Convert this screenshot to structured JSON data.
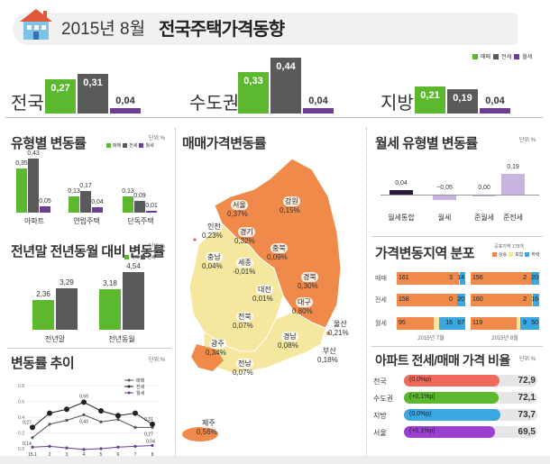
{
  "header": {
    "date": "2015년 8월",
    "title": "전국주택가격동향"
  },
  "legend3": [
    "매매",
    "전세",
    "월세"
  ],
  "top_groups": [
    {
      "label": "전국",
      "values": [
        0.27,
        0.31,
        0.04
      ],
      "texts": [
        "0,27",
        "0,31",
        "0,04"
      ]
    },
    {
      "label": "수도권",
      "values": [
        0.33,
        0.44,
        0.04
      ],
      "texts": [
        "0,33",
        "0,44",
        "0,04"
      ]
    },
    {
      "label": "지방",
      "values": [
        0.21,
        0.19,
        0.04
      ],
      "texts": [
        "0,21",
        "0,19",
        "0,04"
      ]
    }
  ],
  "type_change": {
    "title": "유형별 변동률",
    "unit": "단위:%",
    "groups": [
      {
        "label": "아파트",
        "values": [
          0.35,
          0.43,
          0.05
        ],
        "texts": [
          "0,35",
          "0,43",
          "0,05"
        ]
      },
      {
        "label": "연립주택",
        "values": [
          0.13,
          0.17,
          0.04
        ],
        "texts": [
          "0,13",
          "0,17",
          "0,04"
        ]
      },
      {
        "label": "단독주택",
        "values": [
          0.13,
          0.09,
          0.01
        ],
        "texts": [
          "0,13",
          "0,09",
          "0,01"
        ]
      }
    ]
  },
  "yoy": {
    "title": "전년말 전년동월 대비 변동률",
    "unit": "단위:%",
    "groups": [
      {
        "label": "전년말",
        "values": [
          2.36,
          3.29
        ],
        "texts": [
          "2,36",
          "3,29"
        ]
      },
      {
        "label": "전년동월",
        "values": [
          3.18,
          4.54
        ],
        "texts": [
          "3,18",
          "4,54"
        ]
      }
    ]
  },
  "trend": {
    "title": "변동률 추이",
    "unit": "단위:%",
    "legend": [
      "매매",
      "전세",
      "월세"
    ],
    "x": [
      "15.1",
      "2",
      "3",
      "4",
      "5",
      "6",
      "7",
      "8"
    ],
    "yticks": [
      "0.8",
      "0.6",
      "0.4",
      "0.2",
      "0.0"
    ],
    "annotations": [
      "0,59",
      "0,27",
      "0,14",
      "0,43",
      "0,31",
      "0,27",
      "0,04"
    ]
  },
  "map": {
    "title": "매매가격변동률",
    "regions": [
      {
        "name": "서울",
        "value": "0,37%"
      },
      {
        "name": "강원",
        "value": "0,15%"
      },
      {
        "name": "인천",
        "value": "0,23%"
      },
      {
        "name": "경기",
        "value": "0,32%"
      },
      {
        "name": "충북",
        "value": "0,09%"
      },
      {
        "name": "충남",
        "value": "0,04%"
      },
      {
        "name": "세종",
        "value": "-0,01%"
      },
      {
        "name": "경북",
        "value": "0,30%"
      },
      {
        "name": "대전",
        "value": "0,01%"
      },
      {
        "name": "대구",
        "value": "0,80%"
      },
      {
        "name": "전북",
        "value": "0,07%"
      },
      {
        "name": "울산",
        "value": "0,21%"
      },
      {
        "name": "경남",
        "value": "0,08%"
      },
      {
        "name": "광주",
        "value": "0,34%"
      },
      {
        "name": "부산",
        "value": "0,18%"
      },
      {
        "name": "전남",
        "value": "0,07%"
      },
      {
        "name": "제주",
        "value": "0,56%"
      }
    ]
  },
  "monthly": {
    "title": "월세 유형별 변동률",
    "unit": "단위:%",
    "items": [
      {
        "label": "월세통합",
        "value": 0.04,
        "text": "0,04"
      },
      {
        "label": "월세",
        "value": -0.05,
        "text": "−0,05"
      },
      {
        "label": "준월세",
        "value": 0.0,
        "text": "0,00"
      },
      {
        "label": "준전세",
        "value": 0.19,
        "text": "0,19"
      }
    ]
  },
  "dist": {
    "title": "가격변동지역 분포",
    "unit_note": "공표지역 178개",
    "legend": [
      "상승",
      "보합",
      "하락"
    ],
    "rows": [
      {
        "label": "매매",
        "jul": [
          161,
          3,
          14
        ],
        "aug": [
          156,
          2,
          20
        ]
      },
      {
        "label": "전세",
        "jul": [
          158,
          0,
          20
        ],
        "aug": [
          160,
          2,
          16
        ]
      },
      {
        "label": "월세",
        "jul": [
          95,
          16,
          67
        ],
        "aug": [
          119,
          9,
          50
        ]
      }
    ],
    "periods": [
      "2015년 7월",
      "2015년 8월"
    ]
  },
  "ratio": {
    "title": "아파트 전세/매매 가격 비율",
    "unit": "단위:%",
    "rows": [
      {
        "label": "전국",
        "delta": "(0,0%p)",
        "value": "72,9",
        "color": "#ef6a5c",
        "fraction": 0.729
      },
      {
        "label": "수도권",
        "delta": "(+0,1%p)",
        "value": "72,1",
        "color": "#5cb82e",
        "fraction": 0.721
      },
      {
        "label": "지방",
        "delta": "(0,0%p)",
        "value": "73,7",
        "color": "#3aa7e0",
        "fraction": 0.737
      },
      {
        "label": "서울",
        "delta": "(+0,1%p)",
        "value": "69,5",
        "color": "#9a3fd0",
        "fraction": 0.695
      }
    ]
  },
  "colors": {
    "green": "#5cb82e",
    "gray": "#5a5a5a",
    "purple": "#6a3f92",
    "orange": "#f08a4b",
    "yellow": "#f5e79e"
  }
}
